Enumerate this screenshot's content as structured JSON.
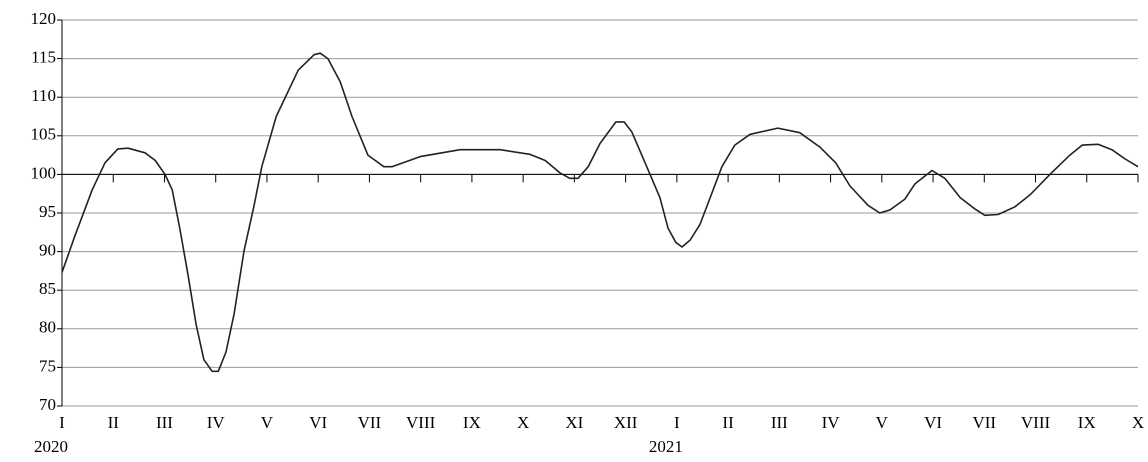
{
  "chart_data": {
    "type": "line",
    "x": [
      0,
      0.25,
      0.59,
      0.84,
      1.09,
      1.29,
      1.62,
      1.82,
      2.01,
      2.15,
      2.3,
      2.46,
      2.62,
      2.77,
      2.93,
      3.05,
      3.2,
      3.36,
      3.55,
      3.75,
      3.9,
      4.18,
      4.61,
      4.92,
      5.04,
      5.19,
      5.43,
      5.66,
      5.97,
      6.28,
      6.44,
      6.99,
      7.77,
      8.55,
      9.13,
      9.43,
      9.72,
      9.91,
      10.07,
      10.27,
      10.5,
      10.81,
      10.97,
      11.12,
      11.38,
      11.67,
      11.83,
      11.98,
      12.1,
      12.26,
      12.45,
      12.65,
      12.88,
      13.13,
      13.43,
      13.97,
      14.4,
      14.8,
      15.1,
      15.38,
      15.73,
      15.96,
      16.16,
      16.45,
      16.65,
      16.98,
      17.23,
      17.53,
      17.82,
      18.01,
      18.27,
      18.6,
      18.9,
      19.28,
      19.67,
      19.91,
      20.22,
      20.49,
      20.75,
      21
    ],
    "series": [
      {
        "color": "#222222",
        "values": [
          87.3,
          92,
          98,
          101.5,
          103.3,
          103.4,
          102.8,
          101.8,
          100,
          98,
          93,
          87,
          80.5,
          76,
          74.5,
          74.5,
          77,
          82,
          90,
          96,
          101,
          107.5,
          113.5,
          115.5,
          115.7,
          115,
          112,
          107.5,
          102.5,
          101,
          101,
          102.3,
          103.2,
          103.2,
          102.6,
          101.8,
          100.2,
          99.5,
          99.5,
          101,
          104,
          106.8,
          106.8,
          105.5,
          101.5,
          97,
          93,
          91.2,
          90.6,
          91.5,
          93.5,
          97,
          101,
          103.8,
          105.2,
          106,
          105.4,
          103.5,
          101.5,
          98.5,
          96,
          95,
          95.4,
          96.8,
          98.8,
          100.5,
          99.5,
          97,
          95.5,
          94.7,
          94.8,
          95.8,
          97.4,
          100,
          102.5,
          103.8,
          103.9,
          103.2,
          102,
          101
        ]
      }
    ],
    "xlim": [
      0,
      21
    ],
    "xticks": [
      {
        "value": 0,
        "label": "I"
      },
      {
        "value": 1,
        "label": "II"
      },
      {
        "value": 2,
        "label": "III"
      },
      {
        "value": 3,
        "label": "IV"
      },
      {
        "value": 4,
        "label": "V"
      },
      {
        "value": 5,
        "label": "VI"
      },
      {
        "value": 6,
        "label": "VII"
      },
      {
        "value": 7,
        "label": "VIII"
      },
      {
        "value": 8,
        "label": "IX"
      },
      {
        "value": 9,
        "label": "X"
      },
      {
        "value": 10,
        "label": "XI"
      },
      {
        "value": 11,
        "label": "XII"
      },
      {
        "value": 12,
        "label": "I"
      },
      {
        "value": 13,
        "label": "II"
      },
      {
        "value": 14,
        "label": "III"
      },
      {
        "value": 15,
        "label": "IV"
      },
      {
        "value": 16,
        "label": "V"
      },
      {
        "value": 17,
        "label": "VI"
      },
      {
        "value": 18,
        "label": "VII"
      },
      {
        "value": 19,
        "label": "VIII"
      },
      {
        "value": 20,
        "label": "IX"
      },
      {
        "value": 21,
        "label": "X"
      }
    ],
    "year_labels": [
      {
        "x": 0,
        "text": "2020"
      },
      {
        "x": 12,
        "text": "2021"
      }
    ],
    "ylim": [
      70,
      120
    ],
    "yticks": [
      70,
      75,
      80,
      85,
      90,
      95,
      100,
      105,
      110,
      115,
      120
    ],
    "x_axis_crosses": 100,
    "grid": true
  }
}
